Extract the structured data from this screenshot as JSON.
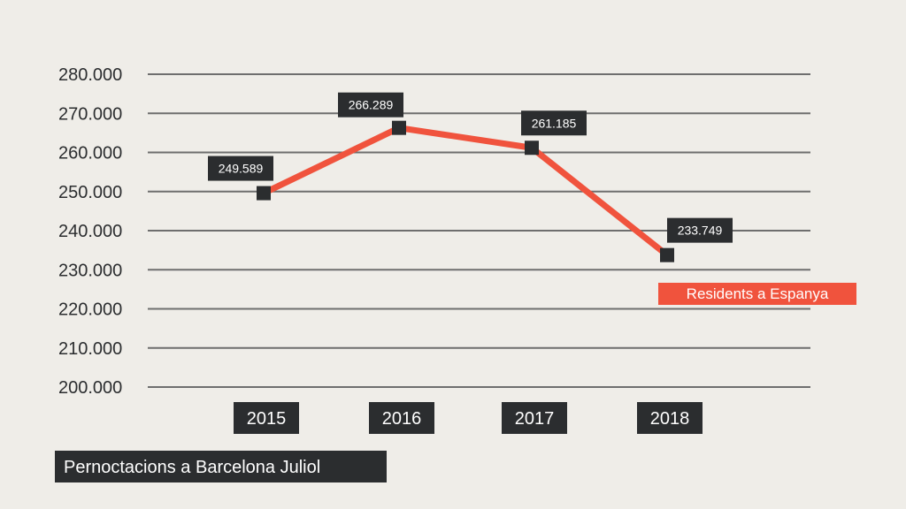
{
  "chart_data": {
    "type": "line",
    "categories": [
      "2015",
      "2016",
      "2017",
      "2018"
    ],
    "series": [
      {
        "name": "Residents a Espanya",
        "values": [
          249589,
          266289,
          261185,
          233749
        ],
        "value_labels": [
          "249.589",
          "266.289",
          "261.185",
          "233.749"
        ],
        "color": "#f0533d"
      }
    ],
    "y_ticks": [
      {
        "value": 200000,
        "label": "200.000"
      },
      {
        "value": 210000,
        "label": "210.000"
      },
      {
        "value": 220000,
        "label": "220.000"
      },
      {
        "value": 230000,
        "label": "230.000"
      },
      {
        "value": 240000,
        "label": "240.000"
      },
      {
        "value": 250000,
        "label": "250.000"
      },
      {
        "value": 260000,
        "label": "260.000"
      },
      {
        "value": 270000,
        "label": "270.000"
      },
      {
        "value": 280000,
        "label": "280.000"
      }
    ],
    "ylim": [
      200000,
      280000
    ],
    "grid": true,
    "legend_position": "right",
    "caption": "Pernoctacions a Barcelona Juliol",
    "colors": {
      "background": "#efede8",
      "text": "#2b2d2f",
      "gridline": "#6e6e6e",
      "marker": "#2b2d2f",
      "label_box": "#2b2d2f",
      "series": "#f0533d"
    }
  }
}
